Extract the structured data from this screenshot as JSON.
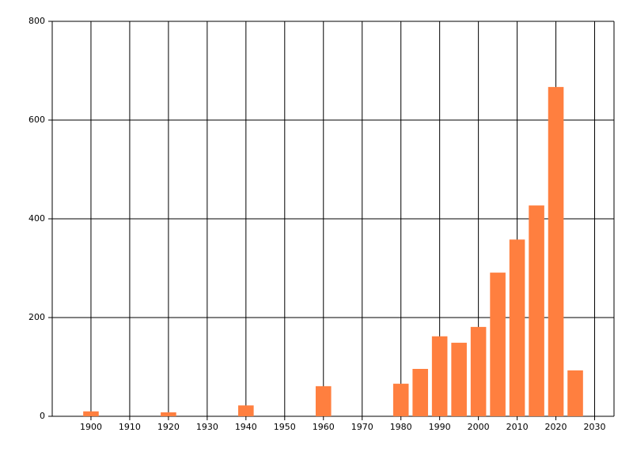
{
  "chart_data": {
    "type": "bar",
    "x": [
      1900,
      1920,
      1940,
      1960,
      1980,
      1985,
      1990,
      1995,
      2000,
      2005,
      2010,
      2015,
      2020,
      2025
    ],
    "values": [
      10,
      8,
      22,
      61,
      66,
      96,
      162,
      149,
      181,
      291,
      358,
      427,
      667,
      93
    ],
    "color": "#ff7f3f",
    "xlim": [
      1890,
      2035
    ],
    "xticks": [
      1900,
      1910,
      1920,
      1930,
      1940,
      1950,
      1960,
      1970,
      1980,
      1990,
      2000,
      2010,
      2020,
      2030
    ],
    "ylim": [
      0,
      800
    ],
    "yticks": [
      0,
      200,
      400,
      600,
      800
    ],
    "grid": true
  }
}
